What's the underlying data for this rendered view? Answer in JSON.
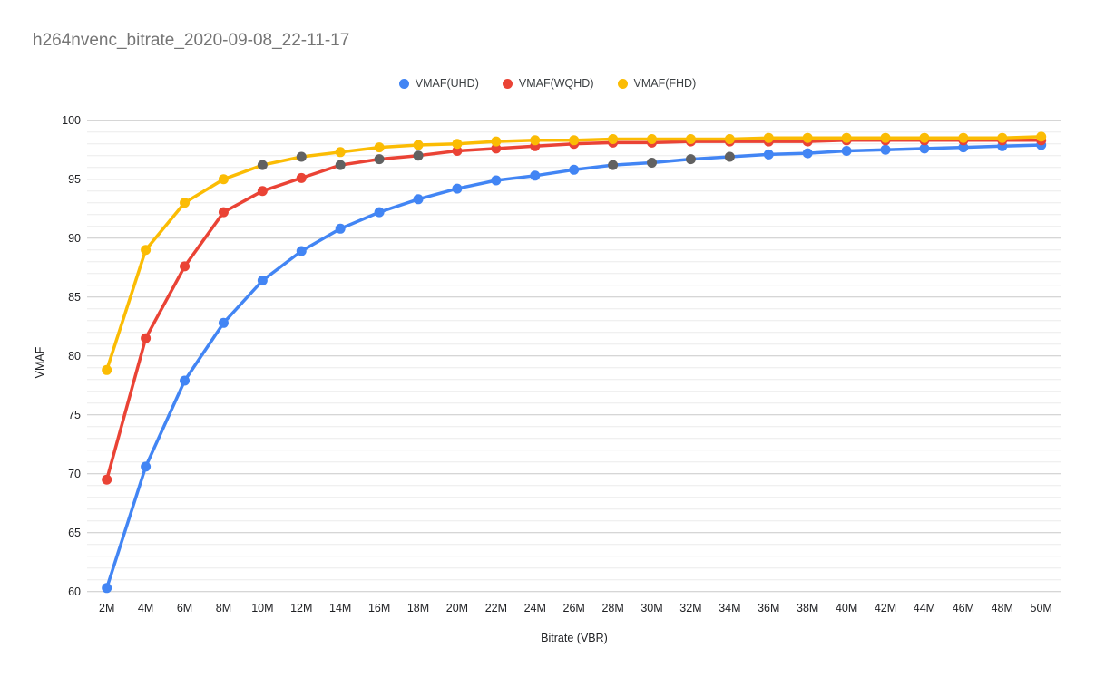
{
  "title": "h264nvenc_bitrate_2020-09-08_22-11-17",
  "title_color": "#757575",
  "chart_data": {
    "type": "line",
    "title": "h264nvenc_bitrate_2020-09-08_22-11-17",
    "xlabel": "Bitrate (VBR)",
    "ylabel": "VMAF",
    "ylim": [
      60,
      100
    ],
    "y_major_ticks": [
      100,
      95,
      90,
      85,
      80,
      75,
      70,
      65,
      60
    ],
    "y_minor_step": 1,
    "grid": "horizontal, minor every 1 + major every 5",
    "legend_position": "top-center",
    "marker_style": "filled circle, radius 5.5",
    "gray_marker_color": "#616161",
    "categories": [
      "2M",
      "4M",
      "6M",
      "8M",
      "10M",
      "12M",
      "14M",
      "16M",
      "18M",
      "20M",
      "22M",
      "24M",
      "26M",
      "28M",
      "30M",
      "32M",
      "34M",
      "36M",
      "38M",
      "40M",
      "42M",
      "44M",
      "46M",
      "48M",
      "50M"
    ],
    "series": [
      {
        "name": "VMAF(UHD)",
        "color": "#4285F4",
        "values": [
          60.3,
          70.6,
          77.9,
          82.8,
          86.4,
          88.9,
          90.8,
          92.2,
          93.3,
          94.2,
          94.9,
          95.3,
          95.8,
          96.2,
          96.4,
          96.7,
          96.9,
          97.1,
          97.2,
          97.4,
          97.5,
          97.6,
          97.7,
          97.8,
          97.9
        ],
        "gray_marker_x": [
          "28M",
          "30M",
          "32M",
          "34M"
        ]
      },
      {
        "name": "VMAF(WQHD)",
        "color": "#EA4335",
        "values": [
          69.5,
          81.5,
          87.6,
          92.2,
          94.0,
          95.1,
          96.2,
          96.7,
          97.0,
          97.4,
          97.6,
          97.8,
          98.0,
          98.1,
          98.1,
          98.2,
          98.2,
          98.2,
          98.2,
          98.3,
          98.3,
          98.3,
          98.3,
          98.3,
          98.3
        ],
        "gray_marker_x": [
          "14M",
          "16M",
          "18M"
        ]
      },
      {
        "name": "VMAF(FHD)",
        "color": "#FBBC04",
        "values": [
          78.8,
          89.0,
          93.0,
          95.0,
          96.2,
          96.9,
          97.3,
          97.7,
          97.9,
          98.0,
          98.2,
          98.3,
          98.3,
          98.4,
          98.4,
          98.4,
          98.4,
          98.5,
          98.5,
          98.5,
          98.5,
          98.5,
          98.5,
          98.5,
          98.6
        ],
        "gray_marker_x": [
          "10M",
          "12M"
        ]
      }
    ]
  }
}
